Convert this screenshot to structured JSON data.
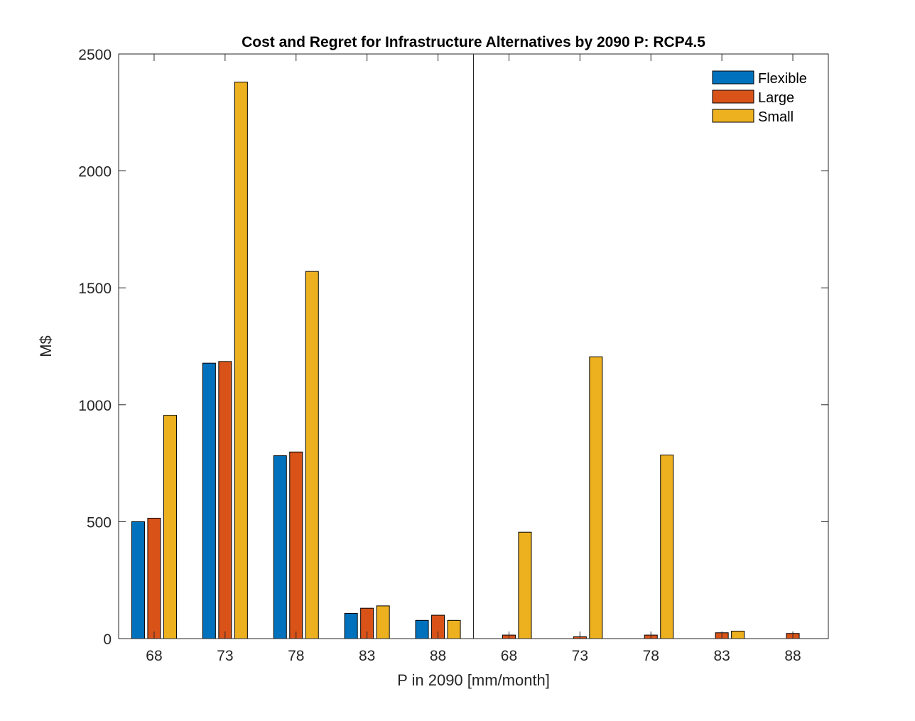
{
  "colors": {
    "Flexible": "#0072BD",
    "Large": "#D95319",
    "Small": "#EDB120",
    "axis": "#262626",
    "bar_edge": "#000000"
  },
  "chart_data": {
    "type": "bar",
    "title": "Cost and Regret for Infrastructure Alternatives by 2090 P: RCP4.5",
    "xlabel": "P in 2090 [mm/month]",
    "ylabel": "M$",
    "ylim": [
      0,
      2500
    ],
    "yticks": [
      "0",
      "500",
      "1000",
      "1500",
      "2000",
      "2500"
    ],
    "categories": [
      "68",
      "73",
      "78",
      "83",
      "88",
      "68",
      "73",
      "78",
      "83",
      "88"
    ],
    "groups": [
      "Cost",
      "Regret"
    ],
    "legend_position": "top-right",
    "grid": false,
    "series": [
      {
        "name": "Flexible",
        "values": [
          500,
          1178,
          782,
          108,
          78,
          0,
          0,
          0,
          0,
          0
        ]
      },
      {
        "name": "Large",
        "values": [
          515,
          1185,
          798,
          130,
          100,
          15,
          8,
          15,
          25,
          22
        ]
      },
      {
        "name": "Small",
        "values": [
          955,
          2380,
          1570,
          140,
          78,
          455,
          1205,
          785,
          32,
          0
        ]
      }
    ]
  }
}
